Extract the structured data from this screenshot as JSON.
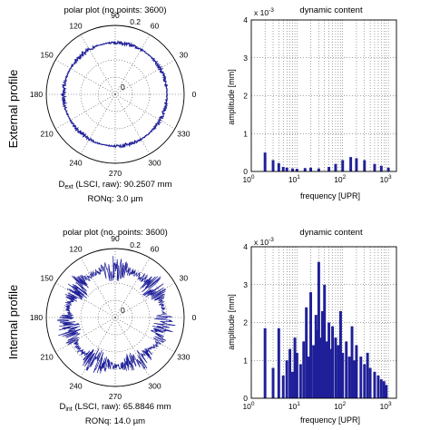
{
  "row_labels": [
    "External profile",
    "Internal profile"
  ],
  "colors": {
    "series": "#1f1f99",
    "grid": "#444444",
    "axis": "#000000"
  },
  "chart_data": [
    {
      "type": "polar-line",
      "title": "polar plot (no.points: 3600)",
      "n_points": 3600,
      "r_max": 0.2,
      "r_ticks": [
        0,
        0.2
      ],
      "angle_ticks": [
        0,
        30,
        60,
        90,
        120,
        150,
        180,
        210,
        240,
        270,
        300,
        330
      ],
      "mean_radius": 0.15,
      "deviation_range": 0.006,
      "info": {
        "diam_main": "D",
        "diam_sub": "ext",
        "diam_rest": " (LSCI, raw): 90.2507 mm",
        "ron": "RONq: 3.0 µm"
      }
    },
    {
      "type": "bar",
      "title": "dynamic content",
      "xlabel": "frequency [UPR]",
      "ylabel": "amplitude [mm]",
      "xscale": "log",
      "xlim": [
        1,
        1500
      ],
      "ylim": [
        0,
        4
      ],
      "y_multiplier": "x 10",
      "y_exponent": "-3",
      "x_ticks": [
        {
          "base": "10",
          "exp": "0",
          "value": 1
        },
        {
          "base": "10",
          "exp": "1",
          "value": 10
        },
        {
          "base": "10",
          "exp": "2",
          "value": 100
        },
        {
          "base": "10",
          "exp": "3",
          "value": 1000
        }
      ],
      "y_ticks": [
        0,
        1,
        2,
        3,
        4
      ],
      "bars": [
        [
          2,
          0.5
        ],
        [
          3,
          0.3
        ],
        [
          4,
          0.22
        ],
        [
          5,
          0.12
        ],
        [
          6,
          0.1
        ],
        [
          8,
          0.08
        ],
        [
          10,
          0.07
        ],
        [
          15,
          0.09
        ],
        [
          20,
          0.1
        ],
        [
          30,
          0.08
        ],
        [
          50,
          0.12
        ],
        [
          70,
          0.2
        ],
        [
          100,
          0.3
        ],
        [
          150,
          0.38
        ],
        [
          200,
          0.35
        ],
        [
          300,
          0.3
        ],
        [
          500,
          0.2
        ],
        [
          700,
          0.15
        ],
        [
          1000,
          0.1
        ]
      ]
    },
    {
      "type": "polar-line",
      "title": "polar plot (no. points: 3600)",
      "n_points": 3600,
      "r_max": 0.2,
      "r_ticks": [
        0,
        0.2
      ],
      "angle_ticks": [
        0,
        30,
        60,
        90,
        120,
        150,
        180,
        210,
        240,
        270,
        300,
        330
      ],
      "mean_radius": 0.14,
      "deviation_range": 0.04,
      "info": {
        "diam_main": "D",
        "diam_sub": "int",
        "diam_rest": " (LSCI, raw): 65.8846 mm",
        "ron": "RONq: 14.0 µm"
      }
    },
    {
      "type": "bar",
      "title": "dynamic content",
      "xlabel": "frequency [UPR]",
      "ylabel": "amplitude [mm]",
      "xscale": "log",
      "xlim": [
        1,
        1500
      ],
      "ylim": [
        0,
        4
      ],
      "y_multiplier": "x 10",
      "y_exponent": "-3",
      "x_ticks": [
        {
          "base": "10",
          "exp": "0",
          "value": 1
        },
        {
          "base": "10",
          "exp": "1",
          "value": 10
        },
        {
          "base": "10",
          "exp": "2",
          "value": 100
        },
        {
          "base": "10",
          "exp": "3",
          "value": 1000
        }
      ],
      "y_ticks": [
        0,
        1,
        2,
        3,
        4
      ],
      "bars": [
        [
          2,
          1.85
        ],
        [
          3,
          0.8
        ],
        [
          4,
          1.85
        ],
        [
          5,
          0.6
        ],
        [
          6,
          1.0
        ],
        [
          7,
          1.3
        ],
        [
          8,
          0.7
        ],
        [
          9,
          1.6
        ],
        [
          10,
          1.2
        ],
        [
          12,
          0.9
        ],
        [
          14,
          1.5
        ],
        [
          16,
          2.4
        ],
        [
          18,
          1.1
        ],
        [
          20,
          2.8
        ],
        [
          23,
          1.4
        ],
        [
          26,
          2.2
        ],
        [
          28,
          1.8
        ],
        [
          30,
          3.6
        ],
        [
          33,
          1.6
        ],
        [
          36,
          2.3
        ],
        [
          40,
          3.0
        ],
        [
          45,
          1.5
        ],
        [
          50,
          2.0
        ],
        [
          55,
          1.3
        ],
        [
          60,
          1.9
        ],
        [
          70,
          1.6
        ],
        [
          80,
          1.4
        ],
        [
          90,
          2.3
        ],
        [
          100,
          1.2
        ],
        [
          120,
          1.5
        ],
        [
          140,
          1.1
        ],
        [
          160,
          1.9
        ],
        [
          180,
          1.0
        ],
        [
          200,
          1.4
        ],
        [
          250,
          1.1
        ],
        [
          300,
          0.9
        ],
        [
          350,
          1.2
        ],
        [
          400,
          0.8
        ],
        [
          500,
          0.7
        ],
        [
          600,
          0.6
        ],
        [
          700,
          0.5
        ],
        [
          800,
          0.45
        ],
        [
          900,
          0.35
        ]
      ]
    }
  ]
}
